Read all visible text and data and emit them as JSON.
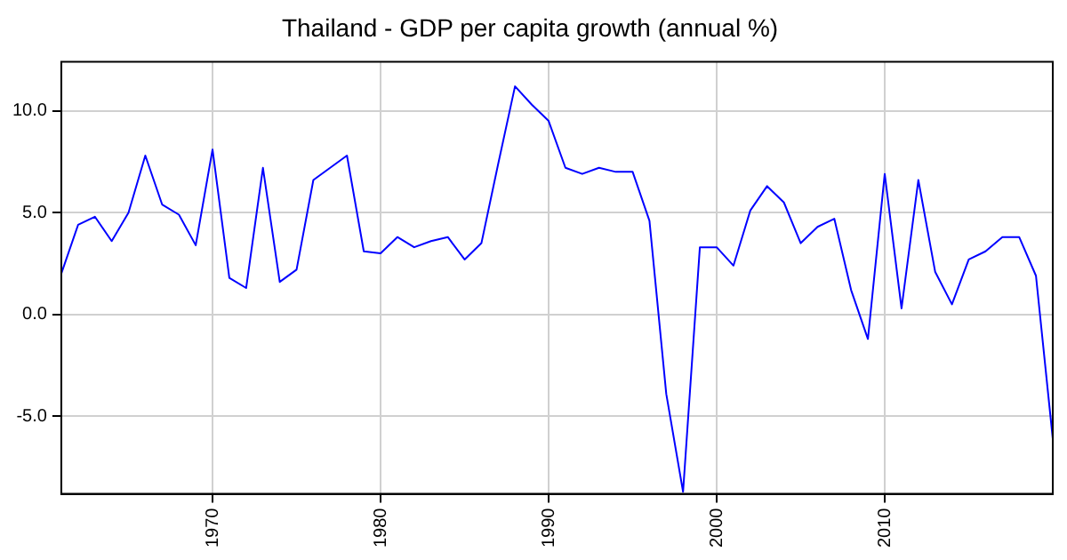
{
  "chart_data": {
    "type": "line",
    "title": "Thailand - GDP per capita growth (annual %)",
    "x": [
      1961,
      1962,
      1963,
      1964,
      1965,
      1966,
      1967,
      1968,
      1969,
      1970,
      1971,
      1972,
      1973,
      1974,
      1975,
      1976,
      1977,
      1978,
      1979,
      1980,
      1981,
      1982,
      1983,
      1984,
      1985,
      1986,
      1987,
      1988,
      1989,
      1990,
      1991,
      1992,
      1993,
      1994,
      1995,
      1996,
      1997,
      1998,
      1999,
      2000,
      2001,
      2002,
      2003,
      2004,
      2005,
      2006,
      2007,
      2008,
      2009,
      2010,
      2011,
      2012,
      2013,
      2014,
      2015,
      2016,
      2017,
      2018,
      2019,
      2020
    ],
    "series": [
      {
        "color": "#0000ff",
        "values": [
          2.0,
          4.4,
          4.8,
          3.6,
          5.0,
          7.8,
          5.4,
          4.9,
          3.4,
          8.1,
          1.8,
          1.3,
          7.2,
          1.6,
          2.2,
          6.6,
          7.2,
          7.8,
          3.1,
          3.0,
          3.8,
          3.3,
          3.6,
          3.8,
          2.7,
          3.5,
          7.4,
          11.2,
          10.3,
          9.5,
          7.2,
          6.9,
          7.2,
          7.0,
          7.0,
          4.6,
          -3.9,
          -8.7,
          3.3,
          3.3,
          2.4,
          5.1,
          6.3,
          5.5,
          3.5,
          4.3,
          4.7,
          1.2,
          -1.2,
          6.9,
          0.3,
          6.6,
          2.1,
          0.5,
          2.7,
          3.1,
          3.8,
          3.8,
          1.9,
          -6.1
        ]
      }
    ],
    "xlim": [
      1961,
      2020
    ],
    "xticks": [
      1970,
      1980,
      1990,
      2000,
      2010
    ],
    "ylim": [
      -8.8,
      12.4
    ],
    "yticks": [
      {
        "value": -5,
        "label": "-5.0"
      },
      {
        "value": 0,
        "label": "0.0"
      },
      {
        "value": 5,
        "label": "5.0"
      },
      {
        "value": 10,
        "label": "10.0"
      }
    ],
    "grid": true,
    "legend": false,
    "marker": "none",
    "line_style": "solid"
  }
}
